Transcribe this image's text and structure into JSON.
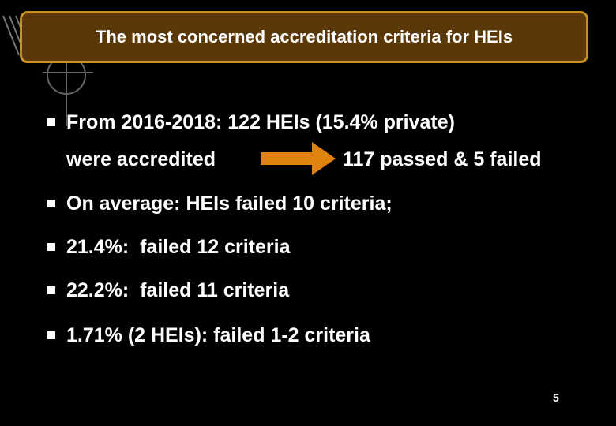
{
  "header": {
    "title": "The most concerned accreditation criteria for HEIs"
  },
  "bullets": [
    {
      "text": "From 2016-2018: 122 HEIs (15.4% private)",
      "continuation": "were accredited",
      "result": "117 passed & 5 failed"
    },
    {
      "text": "On average: HEIs failed 10 criteria;"
    },
    {
      "text": "21.4%:  failed 12 criteria"
    },
    {
      "text": "22.2%:  failed 11 criteria"
    },
    {
      "text": "1.71% (2 HEIs): failed 1-2 criteria"
    }
  ],
  "footer": {
    "page_number": "5"
  }
}
